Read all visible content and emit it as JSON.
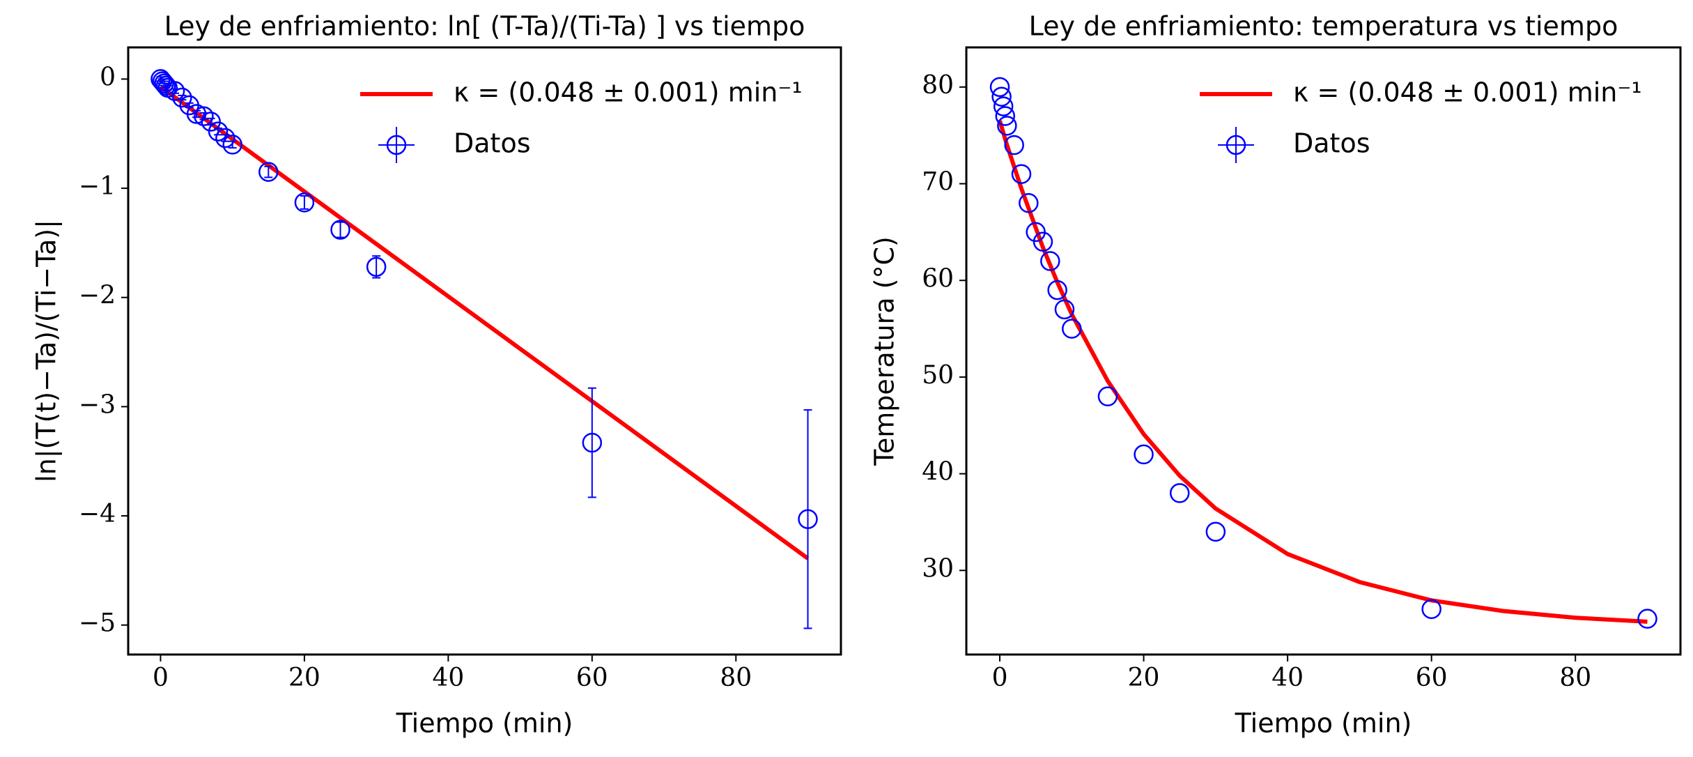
{
  "chart_data": [
    {
      "type": "line",
      "title": "Ley de enfriamiento: ln[ (T-Ta)/(Ti-Ta) ] vs tiempo",
      "xlabel": "Tiempo (min)",
      "ylabel": "ln|(T(t)−Ta)/(Ti−Ta)|",
      "xlim": [
        -4.5,
        94.6
      ],
      "ylim": [
        -5.27,
        0.29
      ],
      "xticks": [
        0,
        20,
        40,
        60,
        80
      ],
      "yticks": [
        {
          "value": 0,
          "label": "0"
        },
        {
          "value": -1,
          "label": "−1"
        },
        {
          "value": -2,
          "label": "−2"
        },
        {
          "value": -3,
          "label": "−3"
        },
        {
          "value": -4,
          "label": "−4"
        },
        {
          "value": -5,
          "label": "−5"
        }
      ],
      "legend": "upper right",
      "series": [
        {
          "name": "κ = (0.048 ± 0.001) min⁻¹",
          "type": "line",
          "color": "#ff0000",
          "x": [
            0,
            90
          ],
          "values": [
            -0.07,
            -4.39
          ]
        },
        {
          "name": "Datos",
          "type": "scatter",
          "color": "#0000ff",
          "x": [
            0,
            0.25,
            0.5,
            0.75,
            1,
            2,
            3,
            4,
            5,
            6,
            7,
            8,
            9,
            10,
            15,
            20,
            25,
            30,
            60,
            90
          ],
          "values": [
            0,
            -0.02,
            -0.04,
            -0.06,
            -0.08,
            -0.11,
            -0.17,
            -0.24,
            -0.32,
            -0.34,
            -0.39,
            -0.48,
            -0.54,
            -0.6,
            -0.85,
            -1.13,
            -1.38,
            -1.72,
            -3.33,
            -4.03
          ],
          "yerr": [
            0.02,
            0.02,
            0.02,
            0.02,
            0.02,
            0.02,
            0.02,
            0.02,
            0.03,
            0.03,
            0.03,
            0.03,
            0.03,
            0.03,
            0.05,
            0.06,
            0.07,
            0.1,
            0.5,
            1.0
          ]
        }
      ]
    },
    {
      "type": "line",
      "title": "Ley de enfriamiento: temperatura vs tiempo",
      "xlabel": "Tiempo (min)",
      "ylabel": "Temperatura (°C)",
      "xlim": [
        -4.65,
        94.6
      ],
      "ylim": [
        21.3,
        84.1
      ],
      "xticks": [
        0,
        20,
        40,
        60,
        80
      ],
      "yticks": [
        30,
        40,
        50,
        60,
        70,
        80
      ],
      "legend": "upper right",
      "series": [
        {
          "name": "κ = (0.048 ± 0.001) min⁻¹",
          "type": "line",
          "color": "#ff0000",
          "x": [
            0,
            1,
            3,
            6,
            8,
            10,
            15,
            20,
            25,
            30,
            40,
            50,
            60,
            70,
            80,
            90
          ],
          "values": [
            76.5,
            74.0,
            69.5,
            63.4,
            59.8,
            56.5,
            49.6,
            44.1,
            39.8,
            36.4,
            31.7,
            28.8,
            26.9,
            25.8,
            25.1,
            24.7
          ]
        },
        {
          "name": "Datos",
          "type": "scatter",
          "color": "#0000ff",
          "x": [
            0,
            0.25,
            0.5,
            0.75,
            1,
            2,
            3,
            4,
            5,
            6,
            7,
            8,
            9,
            10,
            15,
            20,
            25,
            30,
            60,
            90
          ],
          "values": [
            80,
            79,
            78,
            77,
            76,
            74,
            71,
            68,
            65,
            64,
            62,
            59,
            57,
            55,
            48,
            42,
            38,
            34,
            26,
            25
          ]
        }
      ]
    }
  ]
}
